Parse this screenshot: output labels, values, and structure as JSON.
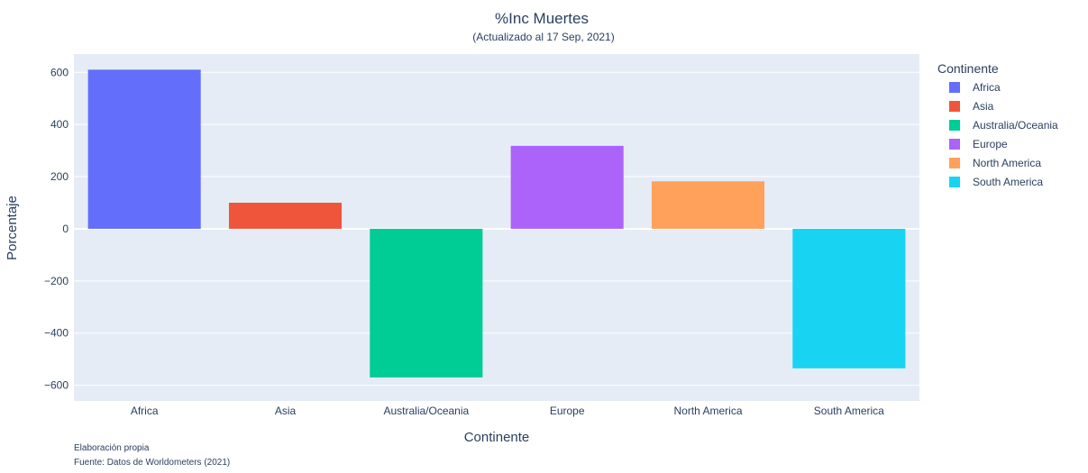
{
  "chart_data": {
    "type": "bar",
    "title": "%Inc Muertes",
    "subtitle": "(Actualizado al 17 Sep, 2021)",
    "xlabel": "Continente",
    "ylabel": "Porcentaje",
    "categories": [
      "Africa",
      "Asia",
      "Australia/Oceania",
      "Europe",
      "North America",
      "South America"
    ],
    "values": [
      610,
      100,
      -570,
      318,
      182,
      -535
    ],
    "colors": [
      "#636efa",
      "#ef553b",
      "#00cc96",
      "#ab63fa",
      "#ffa15a",
      "#19d3f3"
    ],
    "ylim": [
      -660,
      670
    ],
    "yticks": [
      600,
      400,
      200,
      0,
      -200,
      -400,
      -600
    ],
    "ytick_labels": [
      "600",
      "400",
      "200",
      "0",
      "−200",
      "−400",
      "−600"
    ],
    "grid": true,
    "legend": {
      "title": "Continente",
      "placement": "right",
      "entries": [
        "Africa",
        "Asia",
        "Australia/Oceania",
        "Europe",
        "North America",
        "South America"
      ]
    },
    "annotations": [
      "Elaboración propia",
      "Fuente: Datos de Worldometers (2021)"
    ]
  }
}
